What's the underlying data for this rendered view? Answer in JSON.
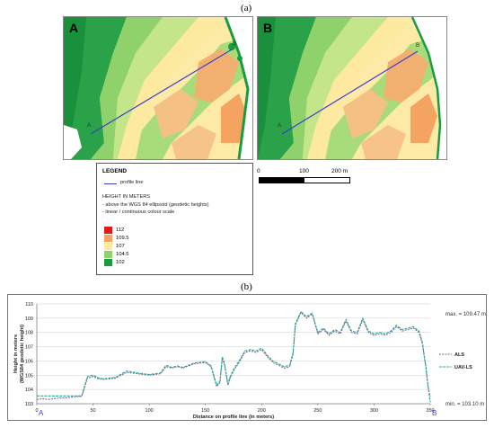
{
  "panel_a_label": "(a)",
  "panel_b_label": "(b)",
  "maps": {
    "left_letter": "A",
    "right_letter": "B",
    "point_a": "A",
    "point_b": "B"
  },
  "legend": {
    "title": "LEGEND",
    "profile_line_label": "profile line",
    "height_title": "HEIGHT IN METERS",
    "note1": "- above the WGS 84 ellipsoid (geodetic heights)",
    "note2": "- linear / continuous colour scale",
    "classes": [
      {
        "label": "112",
        "color": "#e31a1c"
      },
      {
        "label": "109.5",
        "color": "#f4a460"
      },
      {
        "label": "107",
        "color": "#fde9a0"
      },
      {
        "label": "104.5",
        "color": "#8fd16a"
      },
      {
        "label": "102",
        "color": "#1a9a41"
      }
    ]
  },
  "scalebar": {
    "l0": "0",
    "l1": "100",
    "l2": "200 m"
  },
  "colors": {
    "profile_line": "#3a3fd0",
    "als": "#7b6aa3",
    "uav": "#2aa58a"
  },
  "chart_data": {
    "type": "line",
    "xlabel": "Distance on profile line (in meters)",
    "ylabel": "Height in meters",
    "ylabel2": "(WGS84 geodetic height)",
    "xlim": [
      0,
      350
    ],
    "ylim": [
      103,
      110
    ],
    "xticks": [
      0,
      50,
      100,
      150,
      200,
      250,
      300,
      350
    ],
    "yticks": [
      103,
      104,
      105,
      106,
      107,
      108,
      109,
      110
    ],
    "grid": true,
    "legend_position": "right",
    "annotations": {
      "max": "max. = 109.47 m",
      "min": "min. = 103.10 m",
      "start": "A",
      "end": "B"
    },
    "series": [
      {
        "name": "ALS",
        "style": "dashed",
        "x": [
          0,
          5,
          10,
          15,
          20,
          25,
          30,
          35,
          40,
          42,
          45,
          50,
          55,
          60,
          70,
          80,
          90,
          100,
          110,
          115,
          120,
          125,
          130,
          140,
          150,
          155,
          160,
          163,
          165,
          167,
          170,
          172,
          175,
          180,
          185,
          190,
          195,
          200,
          205,
          210,
          215,
          220,
          225,
          228,
          230,
          235,
          240,
          245,
          250,
          255,
          260,
          265,
          270,
          275,
          280,
          285,
          290,
          295,
          300,
          305,
          310,
          315,
          320,
          325,
          330,
          335,
          340,
          343,
          346,
          348,
          350
        ],
        "y": [
          103.3,
          103.35,
          103.3,
          103.35,
          103.4,
          103.4,
          103.45,
          103.5,
          103.5,
          104.0,
          104.8,
          104.9,
          104.75,
          104.7,
          104.8,
          105.2,
          105.1,
          105.0,
          105.1,
          105.6,
          105.5,
          105.6,
          105.5,
          105.8,
          105.9,
          105.6,
          104.2,
          104.5,
          106.2,
          105.7,
          104.3,
          104.8,
          105.3,
          105.9,
          106.6,
          106.7,
          106.6,
          106.8,
          106.3,
          105.9,
          105.7,
          105.5,
          105.6,
          106.5,
          108.5,
          109.4,
          109.0,
          109.3,
          107.9,
          108.2,
          107.8,
          108.1,
          107.9,
          108.8,
          108.0,
          107.9,
          108.9,
          108.0,
          107.8,
          107.9,
          107.8,
          108.0,
          108.4,
          108.1,
          108.2,
          108.3,
          108.0,
          107.2,
          105.6,
          104.2,
          103.5
        ]
      },
      {
        "name": "UAV-LS",
        "style": "dashed",
        "x": [
          0,
          5,
          10,
          15,
          20,
          25,
          30,
          35,
          40,
          42,
          45,
          50,
          55,
          60,
          70,
          80,
          90,
          100,
          110,
          115,
          120,
          125,
          130,
          140,
          150,
          155,
          160,
          163,
          165,
          167,
          170,
          172,
          175,
          180,
          185,
          190,
          195,
          200,
          205,
          210,
          215,
          220,
          225,
          228,
          230,
          235,
          240,
          245,
          250,
          255,
          260,
          265,
          270,
          275,
          280,
          285,
          290,
          295,
          300,
          305,
          310,
          315,
          320,
          325,
          330,
          335,
          340,
          343,
          346,
          348,
          350
        ],
        "y": [
          103.55,
          103.55,
          103.55,
          103.55,
          103.55,
          103.55,
          103.55,
          103.55,
          103.55,
          104.1,
          104.9,
          105.0,
          104.8,
          104.75,
          104.85,
          105.3,
          105.15,
          105.05,
          105.15,
          105.7,
          105.55,
          105.65,
          105.55,
          105.85,
          105.95,
          105.65,
          104.3,
          104.6,
          106.3,
          105.8,
          104.4,
          104.9,
          105.4,
          106.0,
          106.7,
          106.8,
          106.7,
          106.9,
          106.4,
          106.0,
          105.8,
          105.6,
          105.7,
          106.6,
          108.6,
          109.47,
          109.1,
          109.35,
          108.0,
          108.3,
          107.9,
          108.2,
          108.0,
          108.9,
          108.1,
          108.0,
          109.0,
          108.1,
          107.9,
          108.0,
          107.9,
          108.1,
          108.5,
          108.2,
          108.3,
          108.4,
          108.1,
          107.3,
          105.7,
          104.3,
          103.1
        ]
      }
    ]
  }
}
